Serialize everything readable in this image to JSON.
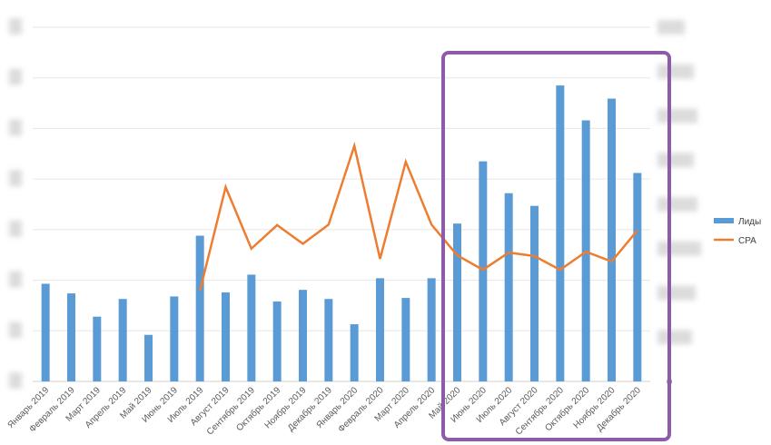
{
  "chart_data": {
    "type": "bar+line",
    "categories": [
      "Январь 2019",
      "Февраль 2019",
      "Март 2019",
      "Апрель 2019",
      "Май 2019",
      "Июнь 2019",
      "Июль 2019",
      "Август 2019",
      "Сентябрь 2019",
      "Октябрь 2019",
      "Ноябрь 2019",
      "Декабрь 2019",
      "Январь 2020",
      "Февраль 2020",
      "Март 2020",
      "Апрель 2020",
      "Май 2020",
      "Июнь 2020",
      "Июль 2020",
      "Август 2020",
      "Сентябрь 2020",
      "Октябрь 2020",
      "Ноябрь 2020",
      "Декабрь 2020"
    ],
    "y_left_range": [
      0,
      7
    ],
    "y_right_range": [
      0,
      8
    ],
    "grid": true,
    "legend_position": "right",
    "series": [
      {
        "name": "Лиды",
        "type": "bar",
        "axis": "left",
        "color": "#5B9BD5",
        "values": [
          1.93,
          1.74,
          1.28,
          1.63,
          0.92,
          1.68,
          2.88,
          1.76,
          2.11,
          1.58,
          1.81,
          1.63,
          1.13,
          2.04,
          1.65,
          2.04,
          3.12,
          4.35,
          3.72,
          3.47,
          5.85,
          5.16,
          5.59,
          4.12
        ]
      },
      {
        "name": "CPA",
        "type": "line",
        "axis": "right",
        "color": "#ED7D31",
        "values": [
          null,
          null,
          null,
          null,
          null,
          null,
          2.05,
          4.39,
          3.0,
          3.53,
          3.11,
          3.54,
          5.32,
          2.77,
          4.96,
          3.54,
          2.85,
          2.52,
          2.91,
          2.83,
          2.52,
          2.93,
          2.71,
          3.41
        ]
      }
    ]
  },
  "highlight": {
    "color": "#8E5BA8"
  },
  "right_axis_zero_label": "0"
}
